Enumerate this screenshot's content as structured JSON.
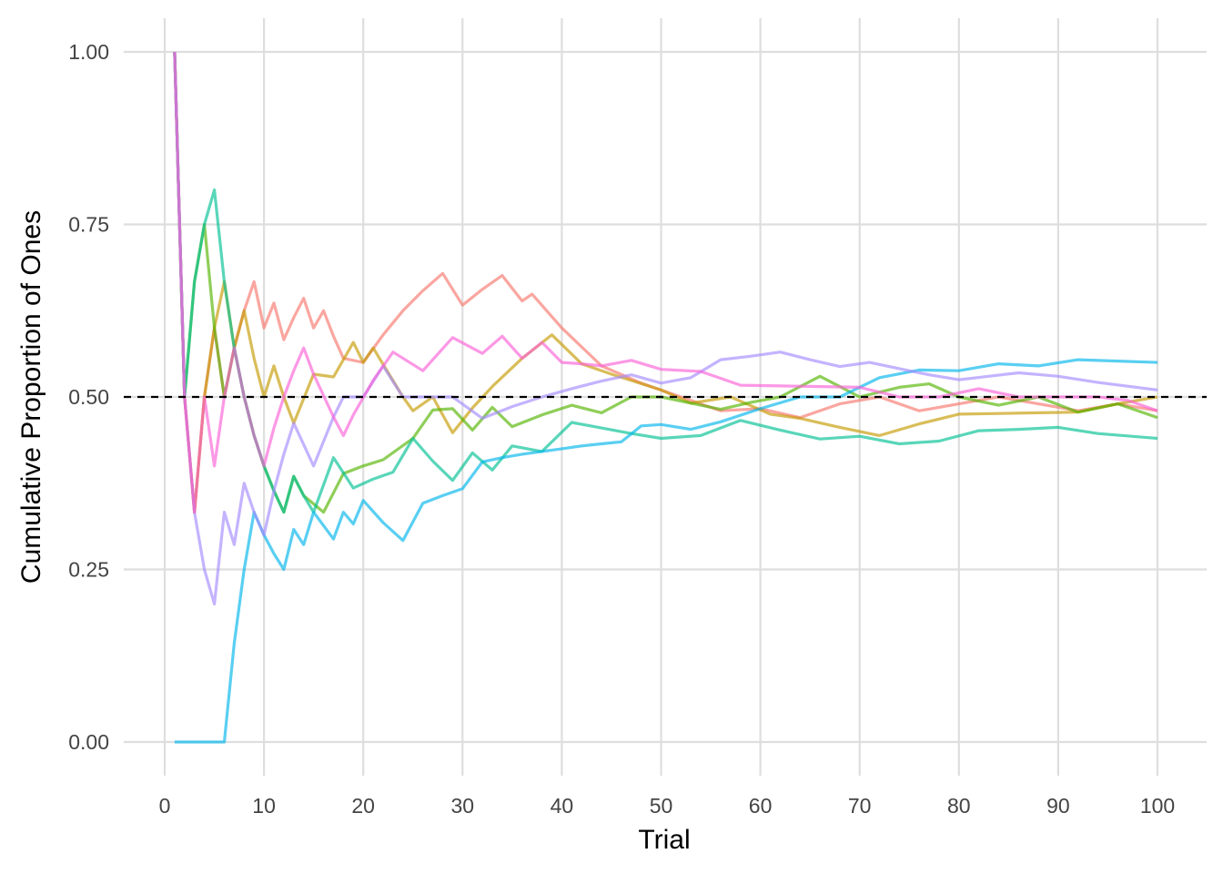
{
  "chart_data": {
    "type": "line",
    "xlabel": "Trial",
    "ylabel": "Cumulative Proportion of Ones",
    "xlim": [
      0,
      100
    ],
    "ylim": [
      0,
      1
    ],
    "x_ticks": [
      0,
      10,
      20,
      30,
      40,
      50,
      60,
      70,
      80,
      90,
      100
    ],
    "y_ticks": [
      0,
      0.25,
      0.5,
      0.75,
      1
    ],
    "y_tick_labels": [
      "0.00",
      "0.25",
      "0.50",
      "0.75",
      "1.00"
    ],
    "x_tick_labels": [
      "0",
      "10",
      "20",
      "30",
      "40",
      "50",
      "60",
      "70",
      "80",
      "90",
      "100"
    ],
    "grid": true,
    "legend": "none",
    "reference_line": {
      "y": 0.5,
      "style": "dashed",
      "color": "#000000"
    },
    "series": [
      {
        "color": "#F8766D",
        "points": [
          [
            1,
            1
          ],
          [
            2,
            0.5
          ],
          [
            3,
            0.333
          ],
          [
            4,
            0.5
          ],
          [
            5,
            0.6
          ],
          [
            6,
            0.5
          ],
          [
            7,
            0.571
          ],
          [
            8,
            0.625
          ],
          [
            9,
            0.667
          ],
          [
            10,
            0.6
          ],
          [
            11,
            0.636
          ],
          [
            12,
            0.583
          ],
          [
            13,
            0.615
          ],
          [
            14,
            0.643
          ],
          [
            15,
            0.6
          ],
          [
            16,
            0.625
          ],
          [
            17,
            0.588
          ],
          [
            18,
            0.556
          ],
          [
            20,
            0.55
          ],
          [
            22,
            0.59
          ],
          [
            24,
            0.625
          ],
          [
            26,
            0.654
          ],
          [
            28,
            0.679
          ],
          [
            30,
            0.633
          ],
          [
            32,
            0.656
          ],
          [
            34,
            0.676
          ],
          [
            36,
            0.639
          ],
          [
            37,
            0.649
          ],
          [
            40,
            0.6
          ],
          [
            44,
            0.545
          ],
          [
            48,
            0.52
          ],
          [
            52,
            0.5
          ],
          [
            56,
            0.48
          ],
          [
            60,
            0.483
          ],
          [
            64,
            0.47
          ],
          [
            68,
            0.49
          ],
          [
            72,
            0.5
          ],
          [
            76,
            0.48
          ],
          [
            80,
            0.49
          ],
          [
            84,
            0.5
          ],
          [
            88,
            0.49
          ],
          [
            92,
            0.48
          ],
          [
            96,
            0.49
          ],
          [
            100,
            0.48
          ]
        ]
      },
      {
        "color": "#C49A00",
        "points": [
          [
            1,
            1
          ],
          [
            2,
            0.5
          ],
          [
            3,
            0.333
          ],
          [
            4,
            0.5
          ],
          [
            5,
            0.6
          ],
          [
            6,
            0.667
          ],
          [
            7,
            0.571
          ],
          [
            8,
            0.625
          ],
          [
            9,
            0.556
          ],
          [
            10,
            0.5
          ],
          [
            11,
            0.545
          ],
          [
            12,
            0.5
          ],
          [
            13,
            0.462
          ],
          [
            15,
            0.533
          ],
          [
            17,
            0.529
          ],
          [
            19,
            0.579
          ],
          [
            20,
            0.55
          ],
          [
            21,
            0.571
          ],
          [
            24,
            0.5
          ],
          [
            25,
            0.48
          ],
          [
            27,
            0.5
          ],
          [
            29,
            0.448
          ],
          [
            31,
            0.484
          ],
          [
            33,
            0.515
          ],
          [
            36,
            0.556
          ],
          [
            39,
            0.59
          ],
          [
            42,
            0.548
          ],
          [
            45,
            0.533
          ],
          [
            50,
            0.51
          ],
          [
            53,
            0.491
          ],
          [
            57,
            0.5
          ],
          [
            61,
            0.475
          ],
          [
            64,
            0.469
          ],
          [
            68,
            0.456
          ],
          [
            72,
            0.444
          ],
          [
            76,
            0.461
          ],
          [
            80,
            0.475
          ],
          [
            84,
            0.476
          ],
          [
            88,
            0.477
          ],
          [
            92,
            0.478
          ],
          [
            96,
            0.49
          ],
          [
            100,
            0.5
          ]
        ]
      },
      {
        "color": "#53B400",
        "points": [
          [
            1,
            1
          ],
          [
            2,
            0.5
          ],
          [
            3,
            0.667
          ],
          [
            4,
            0.75
          ],
          [
            5,
            0.6
          ],
          [
            6,
            0.5
          ],
          [
            7,
            0.571
          ],
          [
            8,
            0.5
          ],
          [
            9,
            0.444
          ],
          [
            10,
            0.4
          ],
          [
            11,
            0.364
          ],
          [
            12,
            0.333
          ],
          [
            13,
            0.385
          ],
          [
            14,
            0.357
          ],
          [
            16,
            0.333
          ],
          [
            18,
            0.389
          ],
          [
            20,
            0.4
          ],
          [
            22,
            0.409
          ],
          [
            25,
            0.44
          ],
          [
            27,
            0.481
          ],
          [
            29,
            0.483
          ],
          [
            31,
            0.452
          ],
          [
            33,
            0.485
          ],
          [
            35,
            0.457
          ],
          [
            38,
            0.474
          ],
          [
            41,
            0.488
          ],
          [
            44,
            0.477
          ],
          [
            47,
            0.5
          ],
          [
            50,
            0.5
          ],
          [
            53,
            0.491
          ],
          [
            56,
            0.482
          ],
          [
            59,
            0.492
          ],
          [
            62,
            0.5
          ],
          [
            66,
            0.53
          ],
          [
            68,
            0.515
          ],
          [
            70,
            0.5
          ],
          [
            74,
            0.514
          ],
          [
            77,
            0.519
          ],
          [
            80,
            0.5
          ],
          [
            84,
            0.488
          ],
          [
            88,
            0.5
          ],
          [
            92,
            0.478
          ],
          [
            96,
            0.49
          ],
          [
            100,
            0.47
          ]
        ]
      },
      {
        "color": "#00C094",
        "points": [
          [
            1,
            1
          ],
          [
            2,
            0.5
          ],
          [
            3,
            0.667
          ],
          [
            4,
            0.75
          ],
          [
            5,
            0.8
          ],
          [
            6,
            0.667
          ],
          [
            7,
            0.571
          ],
          [
            8,
            0.5
          ],
          [
            9,
            0.444
          ],
          [
            10,
            0.4
          ],
          [
            11,
            0.364
          ],
          [
            12,
            0.333
          ],
          [
            13,
            0.385
          ],
          [
            14,
            0.357
          ],
          [
            15,
            0.333
          ],
          [
            17,
            0.412
          ],
          [
            19,
            0.368
          ],
          [
            21,
            0.381
          ],
          [
            23,
            0.391
          ],
          [
            25,
            0.44
          ],
          [
            27,
            0.407
          ],
          [
            29,
            0.379
          ],
          [
            31,
            0.419
          ],
          [
            33,
            0.394
          ],
          [
            35,
            0.429
          ],
          [
            38,
            0.421
          ],
          [
            41,
            0.463
          ],
          [
            44,
            0.455
          ],
          [
            47,
            0.447
          ],
          [
            50,
            0.44
          ],
          [
            54,
            0.444
          ],
          [
            58,
            0.466
          ],
          [
            62,
            0.452
          ],
          [
            66,
            0.439
          ],
          [
            70,
            0.443
          ],
          [
            74,
            0.432
          ],
          [
            78,
            0.436
          ],
          [
            82,
            0.451
          ],
          [
            86,
            0.453
          ],
          [
            90,
            0.456
          ],
          [
            94,
            0.447
          ],
          [
            100,
            0.44
          ]
        ]
      },
      {
        "color": "#00B6EB",
        "points": [
          [
            1,
            0
          ],
          [
            6,
            0
          ],
          [
            7,
            0.143
          ],
          [
            8,
            0.25
          ],
          [
            9,
            0.333
          ],
          [
            10,
            0.3
          ],
          [
            11,
            0.273
          ],
          [
            12,
            0.25
          ],
          [
            13,
            0.308
          ],
          [
            14,
            0.286
          ],
          [
            15,
            0.333
          ],
          [
            17,
            0.294
          ],
          [
            18,
            0.333
          ],
          [
            19,
            0.316
          ],
          [
            20,
            0.35
          ],
          [
            22,
            0.318
          ],
          [
            24,
            0.292
          ],
          [
            26,
            0.346
          ],
          [
            28,
            0.357
          ],
          [
            30,
            0.367
          ],
          [
            32,
            0.406
          ],
          [
            34,
            0.412
          ],
          [
            36,
            0.417
          ],
          [
            38,
            0.421
          ],
          [
            40,
            0.425
          ],
          [
            42,
            0.429
          ],
          [
            44,
            0.432
          ],
          [
            46,
            0.435
          ],
          [
            48,
            0.458
          ],
          [
            50,
            0.46
          ],
          [
            53,
            0.453
          ],
          [
            56,
            0.464
          ],
          [
            60,
            0.483
          ],
          [
            64,
            0.5
          ],
          [
            68,
            0.5
          ],
          [
            72,
            0.528
          ],
          [
            76,
            0.539
          ],
          [
            80,
            0.538
          ],
          [
            84,
            0.548
          ],
          [
            88,
            0.545
          ],
          [
            92,
            0.554
          ],
          [
            96,
            0.552
          ],
          [
            100,
            0.55
          ]
        ]
      },
      {
        "color": "#A58AFF",
        "points": [
          [
            1,
            1
          ],
          [
            2,
            0.5
          ],
          [
            3,
            0.333
          ],
          [
            4,
            0.25
          ],
          [
            5,
            0.2
          ],
          [
            6,
            0.333
          ],
          [
            7,
            0.286
          ],
          [
            8,
            0.375
          ],
          [
            9,
            0.333
          ],
          [
            10,
            0.3
          ],
          [
            11,
            0.364
          ],
          [
            12,
            0.417
          ],
          [
            13,
            0.462
          ],
          [
            15,
            0.4
          ],
          [
            17,
            0.471
          ],
          [
            18,
            0.5
          ],
          [
            20,
            0.5
          ],
          [
            22,
            0.545
          ],
          [
            24,
            0.5
          ],
          [
            26,
            0.5
          ],
          [
            29,
            0.5
          ],
          [
            32,
            0.469
          ],
          [
            35,
            0.486
          ],
          [
            38,
            0.5
          ],
          [
            41,
            0.512
          ],
          [
            44,
            0.523
          ],
          [
            47,
            0.532
          ],
          [
            50,
            0.52
          ],
          [
            53,
            0.528
          ],
          [
            56,
            0.554
          ],
          [
            59,
            0.559
          ],
          [
            62,
            0.565
          ],
          [
            65,
            0.554
          ],
          [
            68,
            0.544
          ],
          [
            71,
            0.55
          ],
          [
            74,
            0.541
          ],
          [
            77,
            0.532
          ],
          [
            80,
            0.525
          ],
          [
            83,
            0.53
          ],
          [
            86,
            0.535
          ],
          [
            90,
            0.53
          ],
          [
            94,
            0.521
          ],
          [
            100,
            0.51
          ]
        ]
      },
      {
        "color": "#FB61D7",
        "points": [
          [
            1,
            1
          ],
          [
            2,
            0.5
          ],
          [
            3,
            0.333
          ],
          [
            4,
            0.5
          ],
          [
            5,
            0.4
          ],
          [
            6,
            0.5
          ],
          [
            7,
            0.571
          ],
          [
            8,
            0.5
          ],
          [
            9,
            0.444
          ],
          [
            10,
            0.4
          ],
          [
            11,
            0.455
          ],
          [
            12,
            0.5
          ],
          [
            13,
            0.538
          ],
          [
            14,
            0.571
          ],
          [
            15,
            0.533
          ],
          [
            17,
            0.471
          ],
          [
            18,
            0.444
          ],
          [
            19,
            0.474
          ],
          [
            21,
            0.524
          ],
          [
            23,
            0.565
          ],
          [
            26,
            0.538
          ],
          [
            29,
            0.586
          ],
          [
            32,
            0.563
          ],
          [
            34,
            0.588
          ],
          [
            36,
            0.556
          ],
          [
            38,
            0.579
          ],
          [
            40,
            0.55
          ],
          [
            42,
            0.548
          ],
          [
            44,
            0.545
          ],
          [
            47,
            0.553
          ],
          [
            50,
            0.54
          ],
          [
            54,
            0.537
          ],
          [
            58,
            0.517
          ],
          [
            62,
            0.516
          ],
          [
            66,
            0.515
          ],
          [
            70,
            0.514
          ],
          [
            74,
            0.5
          ],
          [
            78,
            0.5
          ],
          [
            82,
            0.512
          ],
          [
            86,
            0.5
          ],
          [
            90,
            0.5
          ],
          [
            94,
            0.5
          ],
          [
            97,
            0.495
          ],
          [
            100,
            0.48
          ]
        ]
      }
    ]
  }
}
